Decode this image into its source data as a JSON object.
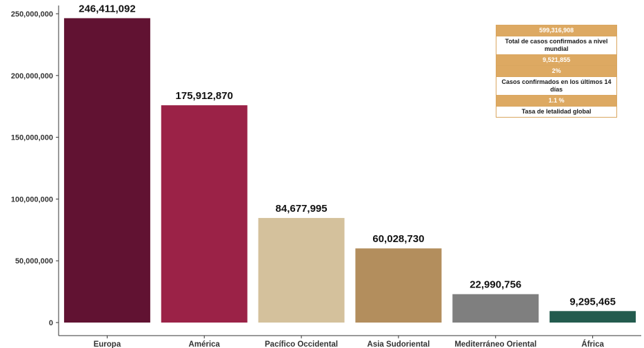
{
  "chart_data": {
    "type": "bar",
    "categories": [
      "Europa",
      "América",
      "Pacífico Occidental",
      "Asia Sudoriental",
      "Mediterráneo Oriental",
      "África"
    ],
    "values": [
      246411092,
      175912870,
      84677995,
      60028730,
      22990756,
      9295465
    ],
    "value_labels": [
      "246,411,092",
      "175,912,870",
      "84,677,995",
      "60,028,730",
      "22,990,756",
      "9,295,465"
    ],
    "colors": [
      "#611232",
      "#9b2247",
      "#d4c19c",
      "#b38e5d",
      "#7f7f7f",
      "#235b4e"
    ],
    "title": "",
    "xlabel": "",
    "ylabel": "",
    "ylim": [
      0,
      250000000
    ],
    "yticks": [
      0,
      50000000,
      100000000,
      150000000,
      200000000,
      250000000
    ],
    "ytick_labels": [
      "0",
      "50,000,000",
      "100,000,000",
      "150,000,000",
      "200,000,000",
      "250,000,000"
    ],
    "grid": false,
    "legend": "none"
  },
  "stats": [
    {
      "kind": "value",
      "text": "599,316,908"
    },
    {
      "kind": "label",
      "text": "Total de casos confirmados a nivel mundial"
    },
    {
      "kind": "value",
      "text": "9,521,855"
    },
    {
      "kind": "value",
      "text": "2%"
    },
    {
      "kind": "label",
      "text": "Casos confirmados en los últimos 14 días"
    },
    {
      "kind": "value",
      "text": "1.1 %"
    },
    {
      "kind": "label",
      "text": "Tasa de letalidad global"
    }
  ]
}
